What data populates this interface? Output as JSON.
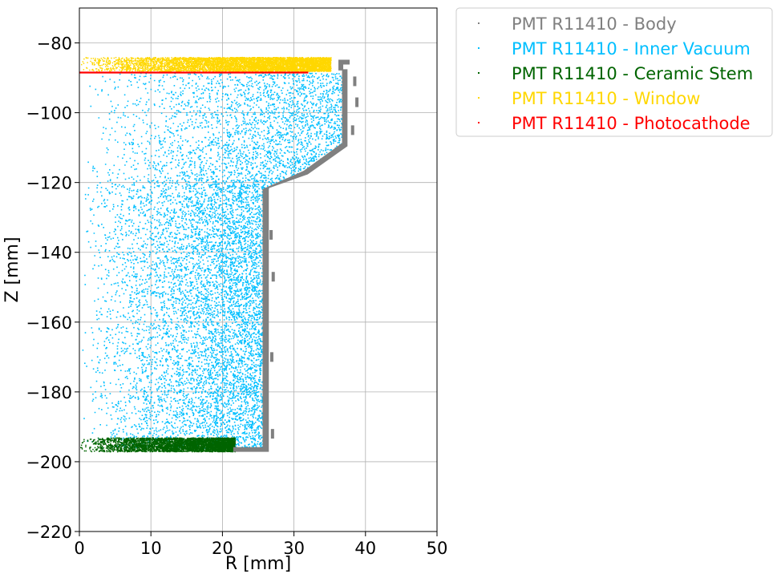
{
  "chart_data": {
    "type": "scatter",
    "xlabel": "R [mm]",
    "ylabel": "Z [mm]",
    "xlim": [
      0,
      50
    ],
    "ylim": [
      -220,
      -70
    ],
    "xticks": [
      "0",
      "10",
      "20",
      "30",
      "40",
      "50"
    ],
    "yticks": [
      "−80",
      "−100",
      "−120",
      "−140",
      "−160",
      "−180",
      "−200",
      "−220"
    ],
    "xtick_values": [
      0,
      10,
      20,
      30,
      40,
      50
    ],
    "ytick_values": [
      -80,
      -100,
      -120,
      -140,
      -160,
      -180,
      -200,
      -220
    ],
    "grid": true,
    "legend_position": "outside-upper-right",
    "series": [
      {
        "name": "PMT R11410 - Body",
        "color": "#808080",
        "region": "wall",
        "outline": [
          [
            37.7,
            -85
          ],
          [
            37.7,
            -86
          ],
          [
            36.8,
            -86
          ],
          [
            36.8,
            -87.7
          ],
          [
            37.4,
            -87.7
          ],
          [
            37.4,
            -109.5
          ],
          [
            31.9,
            -117.5
          ],
          [
            26.4,
            -121.5
          ],
          [
            26.4,
            -197
          ],
          [
            21.6,
            -197
          ],
          [
            21.6,
            -196
          ],
          [
            25.7,
            -196
          ],
          [
            25.7,
            -122
          ],
          [
            31.4,
            -116.8
          ],
          [
            36.8,
            -108.8
          ],
          [
            36.8,
            -87.7
          ],
          [
            36.3,
            -87.7
          ],
          [
            36.3,
            -85
          ]
        ],
        "extra_points": [
          [
            38.5,
            -91
          ],
          [
            38.8,
            -97
          ],
          [
            38.2,
            -105
          ],
          [
            26.8,
            -135
          ],
          [
            27.1,
            -147
          ],
          [
            26.9,
            -170
          ],
          [
            27.0,
            -192
          ]
        ]
      },
      {
        "name": "PMT R11410 - Inner Vacuum",
        "color": "#00bfff",
        "region": "interior",
        "z_range": [
          -196,
          -88.5
        ],
        "r_max_profile": [
          [
            -88.5,
            37.0
          ],
          [
            -109,
            37.0
          ],
          [
            -116.5,
            31.2
          ],
          [
            -122,
            25.8
          ],
          [
            -196,
            25.8
          ]
        ]
      },
      {
        "name": "PMT R11410 - Ceramic Stem",
        "color": "#006400",
        "region": "slab",
        "r_range": [
          0,
          21.7
        ],
        "z_range": [
          -197,
          -193
        ]
      },
      {
        "name": "PMT R11410 - Window",
        "color": "#ffd700",
        "region": "slab",
        "r_range": [
          0,
          35.1
        ],
        "z_range": [
          -88,
          -84
        ]
      },
      {
        "name": "PMT R11410 - Photocathode",
        "color": "#ff0000",
        "region": "line",
        "r_range": [
          0,
          32
        ],
        "z": -88.5
      }
    ]
  }
}
